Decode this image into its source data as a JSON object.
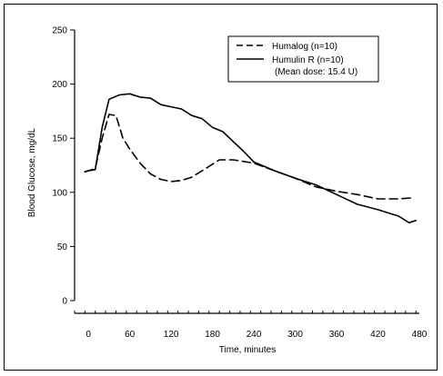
{
  "chart_data": {
    "type": "line",
    "title": "",
    "xlabel": "Time, minutes",
    "ylabel": "Blood Glucose, mg/dL",
    "xlim": [
      -20,
      480
    ],
    "ylim": [
      0,
      250
    ],
    "x_ticks": [
      0,
      60,
      120,
      180,
      240,
      300,
      360,
      420,
      480
    ],
    "y_ticks": [
      0,
      50,
      100,
      150,
      200,
      250
    ],
    "grid": false,
    "legend_position": "top-right",
    "series": [
      {
        "name": "Humalog (n=10)",
        "style": "dashed",
        "x": [
          -5,
          0,
          10,
          20,
          30,
          40,
          50,
          60,
          75,
          90,
          105,
          120,
          135,
          150,
          165,
          180,
          190,
          210,
          240,
          270,
          300,
          330,
          360,
          390,
          420,
          450,
          470
        ],
        "y": [
          119,
          120,
          122,
          150,
          172,
          171,
          150,
          140,
          127,
          117,
          112,
          110,
          111,
          114,
          120,
          126,
          130,
          130,
          127,
          120,
          113,
          105,
          101,
          98,
          94,
          94,
          95
        ]
      },
      {
        "name": "Humulin R (n=10)",
        "style": "solid",
        "x": [
          -5,
          0,
          10,
          20,
          30,
          45,
          60,
          75,
          90,
          105,
          120,
          135,
          150,
          165,
          180,
          195,
          210,
          225,
          240,
          270,
          300,
          330,
          360,
          390,
          420,
          450,
          465,
          475
        ],
        "y": [
          119,
          120,
          121,
          160,
          186,
          190,
          191,
          188,
          187,
          181,
          179,
          177,
          171,
          168,
          160,
          156,
          147,
          138,
          128,
          120,
          113,
          107,
          98,
          89,
          84,
          78,
          72,
          74
        ]
      }
    ],
    "legend_note": "(Mean dose: 15.4 U)"
  }
}
